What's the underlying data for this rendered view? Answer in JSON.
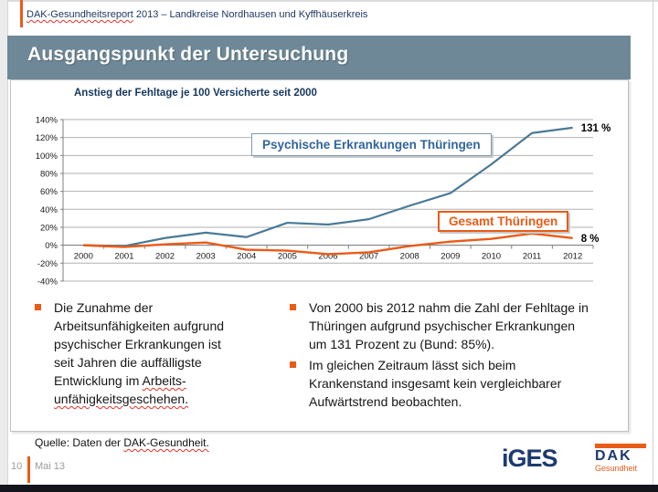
{
  "header": {
    "report_title_segments": [
      {
        "t": "DAK-Gesundheitsreport",
        "u": true
      },
      {
        "t": " 2013 – Landkreise Nordhausen und Kyffhäuserkreis"
      }
    ]
  },
  "banner": {
    "title": "Ausgangspunkt der Untersuchung",
    "bg_color": "#6e8897"
  },
  "chart_data": {
    "type": "line",
    "title": "Anstieg der Fehltage je 100 Versicherte seit 2000",
    "x": [
      "2000",
      "2001",
      "2002",
      "2003",
      "2004",
      "2005",
      "2006",
      "2007",
      "2008",
      "2009",
      "2010",
      "2011",
      "2012"
    ],
    "series": [
      {
        "name": "Psychische Erkrankungen Thüringen",
        "color": "#4a7a94",
        "values": [
          0,
          -1,
          8,
          14,
          9,
          25,
          23,
          29,
          44,
          58,
          90,
          125,
          131
        ],
        "end_label": "131 %"
      },
      {
        "name": "Gesamt Thüringen",
        "color": "#ea5b17",
        "values": [
          0,
          -2,
          1,
          3,
          -5,
          -6,
          -10,
          -8,
          -1,
          4,
          7,
          13,
          8
        ],
        "end_label": "8 %"
      }
    ],
    "ylabel": "",
    "xlabel": "",
    "ylim": [
      -40,
      140
    ],
    "ytick_step": 20,
    "ytick_suffix": "%",
    "grid": true,
    "legend_position": "floating boxes over plot"
  },
  "bullets": {
    "marker_color": "#ea5b17",
    "left": {
      "segments": [
        {
          "t": "Die Zunahme der"
        },
        {
          "t": "Arbeitsunfähigkeiten aufgrund",
          "br": true
        },
        {
          "t": "psychischer Erkrankungen ist",
          "br": true
        },
        {
          "t": "seit Jahren die auffälligste",
          "br": true
        },
        {
          "t": "Entwicklung im ",
          "br": true
        },
        {
          "t": "Arbeits-",
          "u": true
        },
        {
          "t": "unfähigkeitsgeschehen.",
          "u": true,
          "br": true
        }
      ]
    },
    "right": [
      {
        "segments": [
          {
            "t": "Von 2000 bis 2012 nahm die Zahl der Fehltage in"
          },
          {
            "t": "Thüringen aufgrund psychischer Erkrankungen",
            "br": true
          },
          {
            "t": "um 131 Prozent zu (Bund: 85%).",
            "br": true
          }
        ]
      },
      {
        "segments": [
          {
            "t": "Im gleichen Zeitraum lässt sich beim"
          },
          {
            "t": "Krankenstand insgesamt kein vergleichbarer",
            "br": true
          },
          {
            "t": "Aufwärtstrend beobachten.",
            "br": true
          }
        ]
      }
    ]
  },
  "footer": {
    "source_segments": [
      {
        "t": "Quelle: Daten der "
      },
      {
        "t": "DAK-Gesundheit.",
        "u": true
      }
    ],
    "page_number": "10",
    "date": "Mai 13",
    "iges_logo_text": "iGES",
    "dak_logo_text": "DAK",
    "dak_logo_sub": "Gesundheit"
  }
}
